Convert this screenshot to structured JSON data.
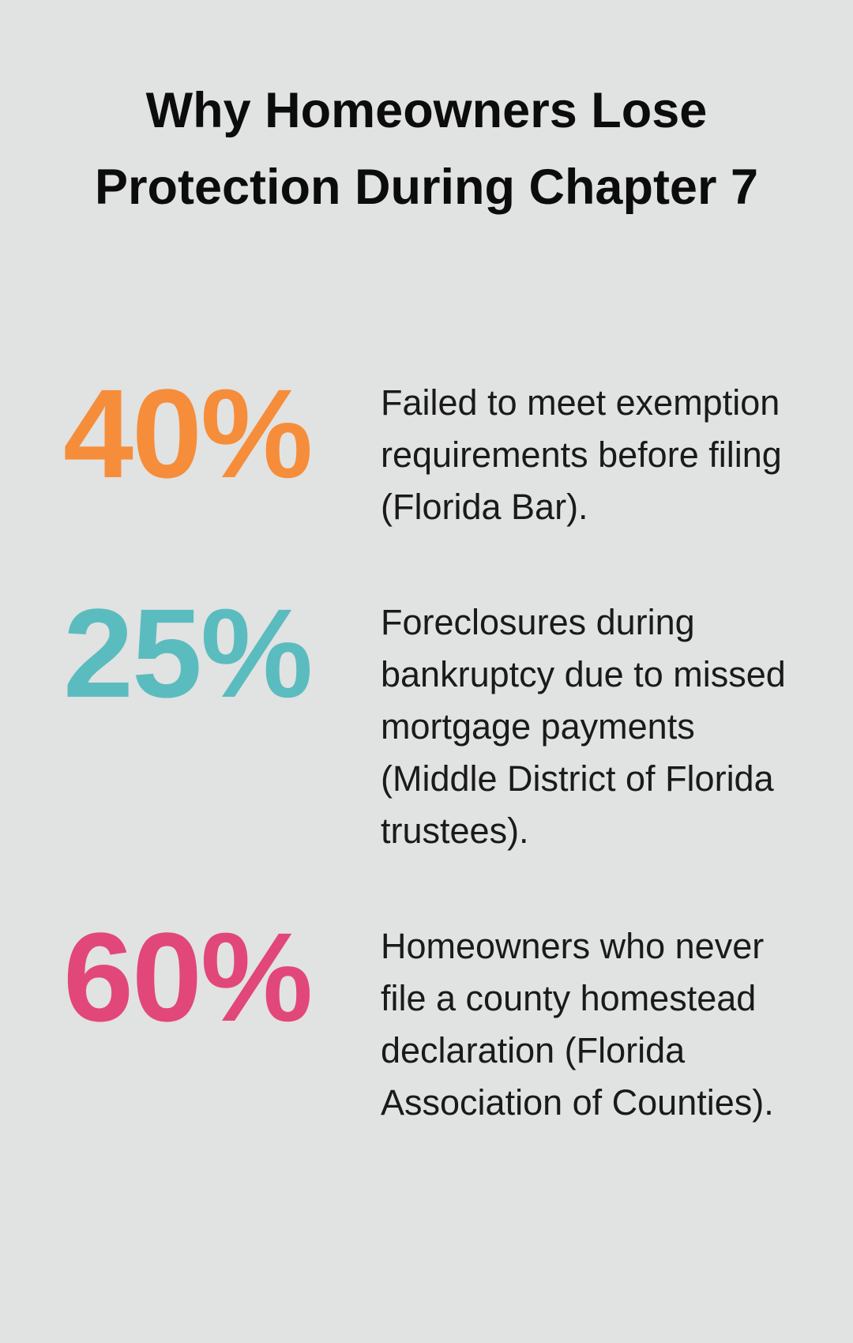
{
  "title": "Why Homeowners Lose Protection During Chapter 7",
  "stats": [
    {
      "value": "40%",
      "color": "#f68d3a",
      "description": "Failed to meet exemption requirements before filing (Florida Bar)."
    },
    {
      "value": "25%",
      "color": "#5bbcbf",
      "description": "Foreclosures during bankruptcy due to missed mortgage payments (Middle District of Florida trustees)."
    },
    {
      "value": "60%",
      "color": "#e2477a",
      "description": "Homeowners who never file a county homestead declaration (Florida Association of Counties)."
    }
  ]
}
